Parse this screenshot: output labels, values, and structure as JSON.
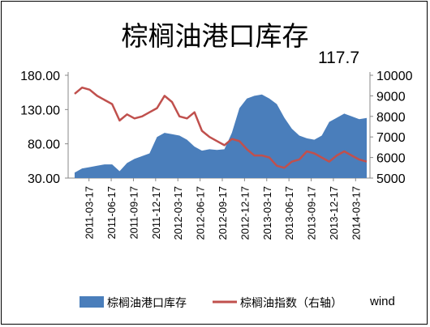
{
  "chart_data": {
    "type": "area",
    "title": "棕榈油港口库存",
    "annotation": "117.7",
    "source": "wind",
    "x_tick_labels": [
      "2011-03-17",
      "2011-06-17",
      "2011-09-17",
      "2011-12-17",
      "2012-03-17",
      "2012-06-17",
      "2012-09-17",
      "2012-12-17",
      "2013-03-17",
      "2013-06-17",
      "2013-09-17",
      "2013-12-17",
      "2014-03-17"
    ],
    "left_axis": {
      "ticks": [
        "180.00",
        "130.00",
        "80.00",
        "30.00"
      ],
      "range": [
        30,
        180
      ]
    },
    "right_axis": {
      "ticks": [
        "10000",
        "9000",
        "8000",
        "7000",
        "6000",
        "5000"
      ],
      "range": [
        5000,
        10000
      ]
    },
    "legend_position": "bottom",
    "x": [
      "2011-03",
      "2011-04",
      "2011-05",
      "2011-06",
      "2011-07",
      "2011-08",
      "2011-09",
      "2011-10",
      "2011-11",
      "2011-12",
      "2012-01",
      "2012-02",
      "2012-03",
      "2012-04",
      "2012-05",
      "2012-06",
      "2012-07",
      "2012-08",
      "2012-09",
      "2012-10",
      "2012-11",
      "2012-12",
      "2013-01",
      "2013-02",
      "2013-03",
      "2013-04",
      "2013-05",
      "2013-06",
      "2013-07",
      "2013-08",
      "2013-09",
      "2013-10",
      "2013-11",
      "2013-12",
      "2014-01",
      "2014-02",
      "2014-03",
      "2014-04",
      "2014-05",
      "2014-06"
    ],
    "series": [
      {
        "name": "棕榈油港口库存",
        "axis": "left",
        "color": "#4a7ebb",
        "values": [
          38,
          44,
          46,
          48,
          50,
          50,
          40,
          52,
          58,
          62,
          66,
          90,
          96,
          94,
          92,
          86,
          76,
          70,
          72,
          71,
          72,
          96,
          132,
          146,
          150,
          152,
          146,
          138,
          118,
          102,
          92,
          88,
          86,
          92,
          112,
          118,
          124,
          120,
          116,
          117.7
        ]
      },
      {
        "name": "棕榈油指数（右轴）",
        "axis": "right",
        "color": "#c0504d",
        "values": [
          9100,
          9400,
          9300,
          9000,
          8800,
          8600,
          7800,
          8100,
          7900,
          8000,
          8200,
          8400,
          9000,
          8700,
          8000,
          7900,
          8200,
          7300,
          7000,
          6800,
          6600,
          6900,
          6800,
          6400,
          6100,
          6100,
          6000,
          5600,
          5500,
          5800,
          5900,
          6300,
          6200,
          6000,
          5800,
          6100,
          6300,
          6100,
          5900,
          5800
        ]
      }
    ]
  }
}
